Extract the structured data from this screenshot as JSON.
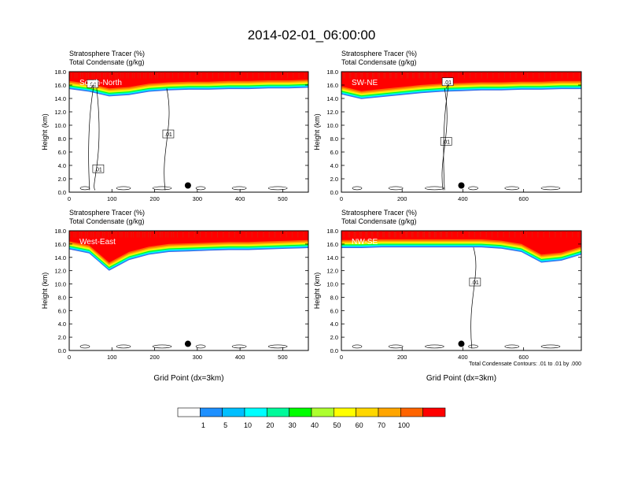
{
  "title": "2014-02-01_06:00:00",
  "chart_data": [
    {
      "type": "heatmap",
      "header_line1": "Stratosphere Tracer   (%)",
      "header_line2": "Total Condensate   (g/kg)",
      "label": "South-North",
      "xlabel": "",
      "ylabel": "Height (km)",
      "xlim": [
        0,
        560
      ],
      "ylim": [
        0,
        18
      ],
      "xticks": [
        0,
        100,
        200,
        300,
        400,
        500
      ],
      "yticks": [
        "0.0",
        "2.0",
        "4.0",
        "6.0",
        "8.0",
        "10.0",
        "12.0",
        "14.0",
        "16.0",
        "18.0"
      ],
      "tracer_top_km": 18.0,
      "tracer_base_km": [
        15.4,
        15.0,
        14.3,
        14.5,
        15.0,
        15.2,
        15.3,
        15.3,
        15.4,
        15.4,
        15.5,
        15.5,
        15.6
      ],
      "contour_labels": [
        {
          "text": ".01",
          "x": 68,
          "y": 3.5
        },
        {
          "text": ".01",
          "x": 232,
          "y": 8.7
        },
        {
          "text": ".01",
          "x": 55,
          "y": 16.2
        }
      ],
      "marker": {
        "x": 278,
        "y": 1.0
      }
    },
    {
      "type": "heatmap",
      "header_line1": "Stratosphere Tracer   (%)",
      "header_line2": "Total Condensate   (g/kg)",
      "label": "SW-NE",
      "xlabel": "",
      "ylabel": "Height (km)",
      "xlim": [
        0,
        790
      ],
      "ylim": [
        0,
        18
      ],
      "xticks": [
        0,
        200,
        400,
        600
      ],
      "yticks": [
        "0.0",
        "2.0",
        "4.0",
        "6.0",
        "8.0",
        "10.0",
        "12.0",
        "14.0",
        "16.0",
        "18.0"
      ],
      "tracer_top_km": 18.0,
      "tracer_base_km": [
        14.6,
        13.9,
        14.2,
        14.5,
        14.8,
        15.0,
        15.1,
        15.2,
        15.2,
        15.3,
        15.3,
        15.4,
        15.4
      ],
      "contour_labels": [
        {
          "text": ".01",
          "x": 345,
          "y": 7.6
        },
        {
          "text": ".01",
          "x": 350,
          "y": 16.5
        }
      ],
      "marker": {
        "x": 395,
        "y": 1.0
      }
    },
    {
      "type": "heatmap",
      "header_line1": "Stratosphere Tracer   (%)",
      "header_line2": "Total Condensate   (g/kg)",
      "label": "West-East",
      "xlabel": "Grid Point (dx=3km)",
      "ylabel": "Height (km)",
      "xlim": [
        0,
        560
      ],
      "ylim": [
        0,
        18
      ],
      "xticks": [
        0,
        100,
        200,
        300,
        400,
        500
      ],
      "yticks": [
        "0.0",
        "2.0",
        "4.0",
        "6.0",
        "8.0",
        "10.0",
        "12.0",
        "14.0",
        "16.0",
        "18.0"
      ],
      "tracer_top_km": 18.0,
      "tracer_base_km": [
        15.2,
        14.6,
        12.0,
        13.6,
        14.4,
        14.8,
        14.9,
        15.0,
        15.1,
        15.1,
        15.2,
        15.3,
        15.4
      ],
      "contour_labels": [],
      "marker": {
        "x": 278,
        "y": 1.0
      }
    },
    {
      "type": "heatmap",
      "header_line1": "Stratosphere Tracer   (%)",
      "header_line2": "Total Condensate   (g/kg)",
      "label": "NW-SE",
      "xlabel": "Grid Point (dx=3km)",
      "ylabel": "Height (km)",
      "xlim": [
        0,
        790
      ],
      "ylim": [
        0,
        18
      ],
      "xticks": [
        0,
        200,
        400,
        600
      ],
      "yticks": [
        "0.0",
        "2.0",
        "4.0",
        "6.0",
        "8.0",
        "10.0",
        "12.0",
        "14.0",
        "16.0",
        "18.0"
      ],
      "tracer_top_km": 18.0,
      "tracer_base_km": [
        15.4,
        15.4,
        15.5,
        15.5,
        15.5,
        15.5,
        15.5,
        15.5,
        15.3,
        14.8,
        13.2,
        13.5,
        14.4
      ],
      "contour_labels": [
        {
          "text": ".01",
          "x": 440,
          "y": 10.3
        }
      ],
      "contour_note": "Total Condensate Contours: .01 to .01 by .000",
      "marker": {
        "x": 395,
        "y": 1.0
      }
    }
  ],
  "colorbar": {
    "labels": [
      "1",
      "5",
      "10",
      "20",
      "30",
      "40",
      "50",
      "60",
      "70",
      "100"
    ],
    "colors": [
      "#ffffff",
      "#1e90ff",
      "#00bfff",
      "#00ffff",
      "#00fa9a",
      "#00ff00",
      "#adff2f",
      "#ffff00",
      "#ffd700",
      "#ffa500",
      "#ff6400",
      "#ff0000"
    ]
  }
}
